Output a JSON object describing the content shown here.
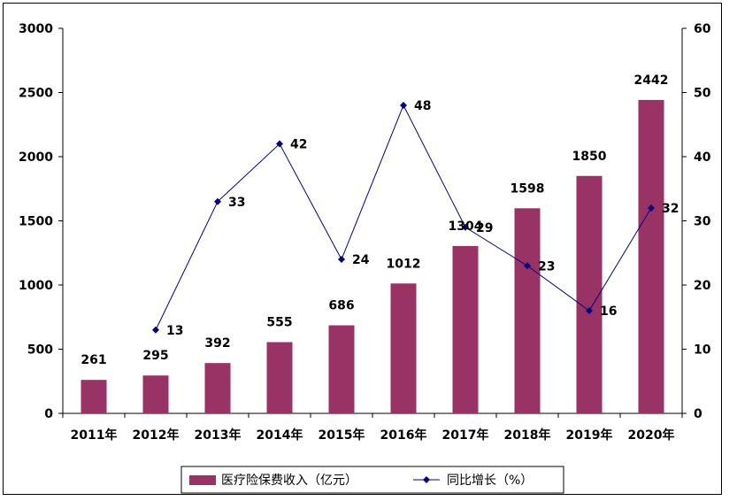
{
  "chart_data": {
    "type": "bar",
    "categories": [
      "2011年",
      "2012年",
      "2013年",
      "2014年",
      "2015年",
      "2016年",
      "2017年",
      "2018年",
      "2019年",
      "2020年"
    ],
    "series": [
      {
        "name": "医疗险保费收入（亿元）",
        "type": "bar",
        "axis": "left",
        "color": "#993366",
        "values": [
          261,
          295,
          392,
          555,
          686,
          1012,
          1304,
          1598,
          1850,
          2442
        ],
        "labels": [
          "261",
          "295",
          "392",
          "555",
          "686",
          "1012",
          "1304",
          "1598",
          "1850",
          "2442"
        ]
      },
      {
        "name": "同比增长（%）",
        "type": "line",
        "axis": "right",
        "color": "#000080",
        "values": [
          null,
          13,
          33,
          42,
          24,
          48,
          29,
          23,
          16,
          32
        ],
        "labels": [
          "",
          "13",
          "33",
          "42",
          "24",
          "48",
          "29",
          "23",
          "16",
          "32"
        ]
      }
    ],
    "y_left": {
      "lim": [
        0,
        3000
      ],
      "ticks": [
        0,
        500,
        1000,
        1500,
        2000,
        2500,
        3000
      ],
      "tick_labels": [
        "0",
        "500",
        "1000",
        "1500",
        "2000",
        "2500",
        "3000"
      ]
    },
    "y_right": {
      "lim": [
        0,
        60
      ],
      "ticks": [
        0,
        10,
        20,
        30,
        40,
        50,
        60
      ],
      "tick_labels": [
        "0",
        "10",
        "20",
        "30",
        "40",
        "50",
        "60"
      ]
    },
    "grid": false,
    "legend_position": "bottom"
  }
}
